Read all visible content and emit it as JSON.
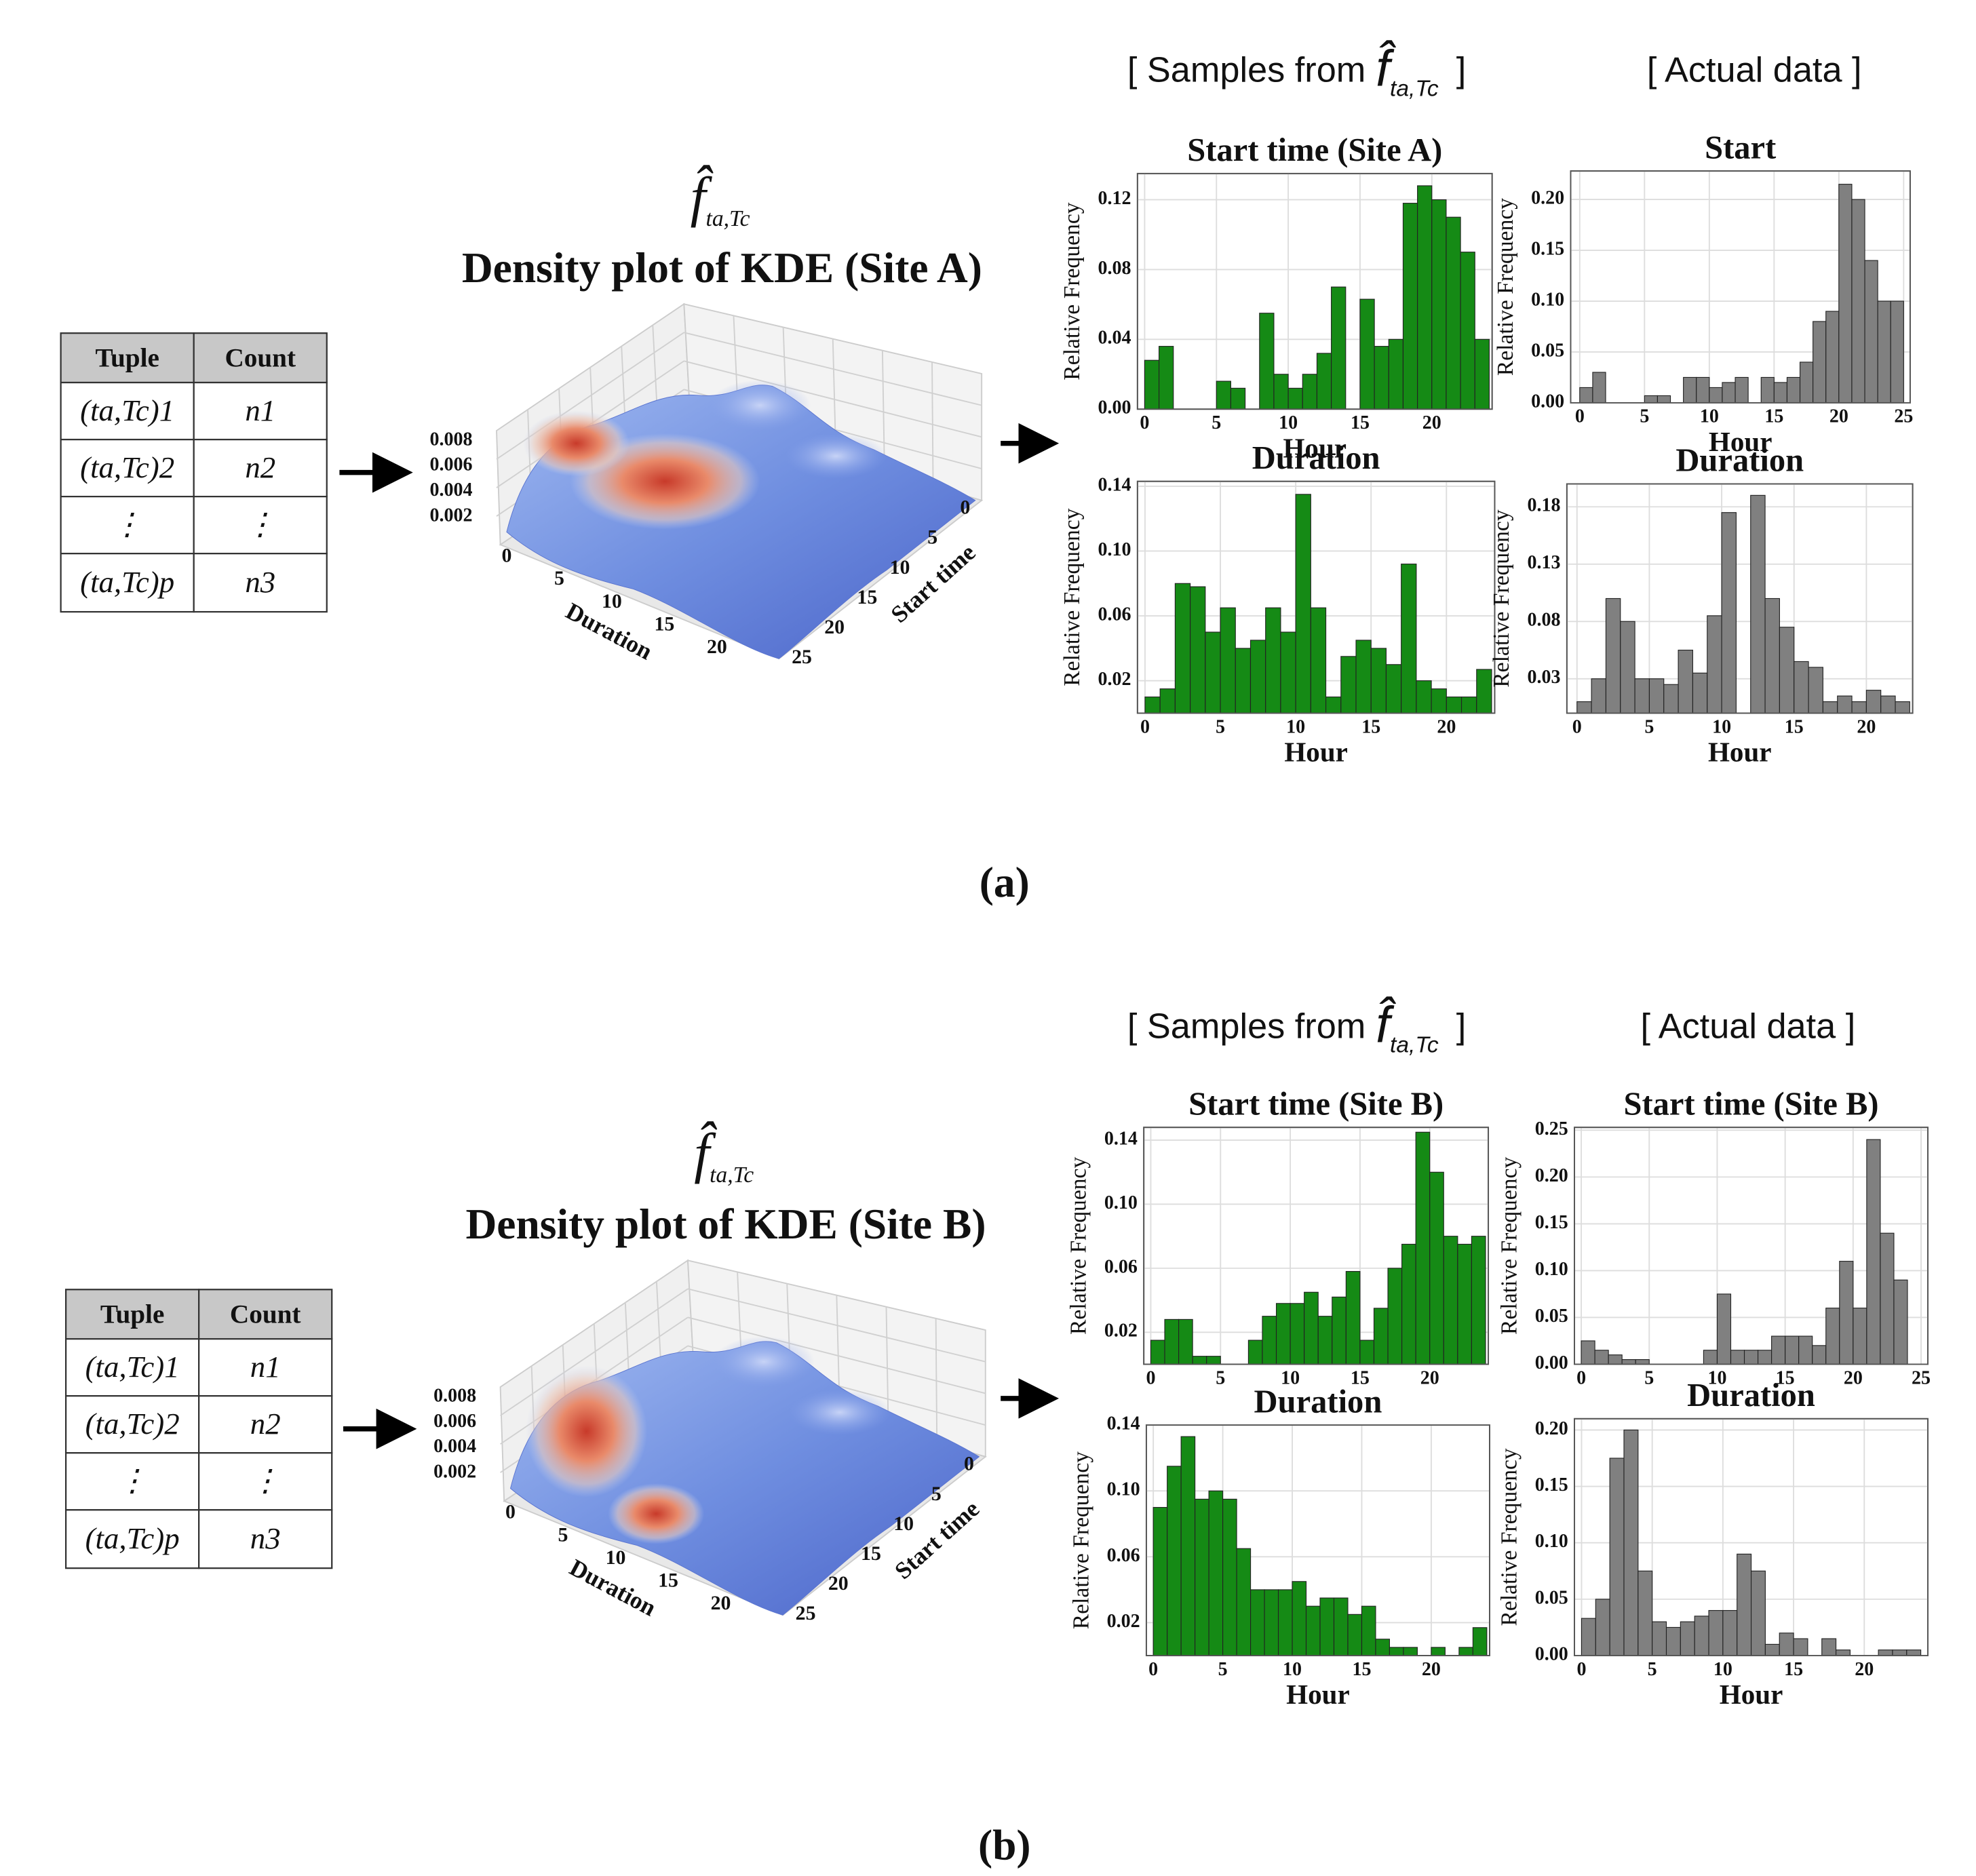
{
  "panels": [
    {
      "label": "(a)",
      "samples": {
        "text": "[ Samples from",
        "symbol": "f̂",
        "subscript": "ta,Tc",
        "close": "]"
      },
      "actual": "[ Actual data ]",
      "table": {
        "header": [
          "Tuple",
          "Count"
        ],
        "rows": [
          [
            "(ta,Tc)1",
            "n1"
          ],
          [
            "(ta,Tc)2",
            "n2"
          ],
          [
            "⋮",
            "⋮"
          ],
          [
            "(ta,Tc)p",
            "n3"
          ]
        ]
      },
      "kde": {
        "symbol": "f̂",
        "subscript": "ta,Tc",
        "title": "Density plot of KDE (Site A)",
        "zticks": [
          0.008,
          0.006,
          0.004,
          0.002
        ],
        "xticks": [
          0,
          5,
          10,
          15,
          20
        ],
        "yticks": [
          0,
          5,
          10,
          15,
          20,
          25
        ],
        "xlabel": "Duration",
        "ylabel": "Start time"
      }
    },
    {
      "label": "(b)",
      "samples": {
        "text": "[ Samples from",
        "symbol": "f̂",
        "subscript": "ta,Tc",
        "close": "]"
      },
      "actual": "[ Actual data ]",
      "table": {
        "header": [
          "Tuple",
          "Count"
        ],
        "rows": [
          [
            "(ta,Tc)1",
            "n1"
          ],
          [
            "(ta,Tc)2",
            "n2"
          ],
          [
            "⋮",
            "⋮"
          ],
          [
            "(ta,Tc)p",
            "n3"
          ]
        ]
      },
      "kde": {
        "symbol": "f̂",
        "subscript": "ta,Tc",
        "title": "Density plot of KDE (Site B)",
        "zticks": [
          0.008,
          0.006,
          0.004,
          0.002
        ],
        "xticks": [
          0,
          5,
          10,
          15,
          20
        ],
        "yticks": [
          0,
          5,
          10,
          15,
          20,
          25
        ],
        "xlabel": "Duration",
        "ylabel": "Start time"
      }
    }
  ],
  "chart_data": [
    {
      "type": "histogram",
      "title": "Start time (Site A)",
      "xlabel": "Hour",
      "ylabel": "Relative Frequency",
      "color": "#158a15",
      "bins": [
        0,
        1,
        2,
        3,
        4,
        5,
        6,
        7,
        8,
        9,
        10,
        11,
        12,
        13,
        14,
        15,
        16,
        17,
        18,
        19,
        20,
        21,
        22,
        23,
        24
      ],
      "values": [
        0.028,
        0.036,
        0,
        0,
        0,
        0.016,
        0.012,
        0,
        0.055,
        0.02,
        0.012,
        0.02,
        0.032,
        0.07,
        0,
        0.063,
        0.036,
        0.04,
        0.118,
        0.128,
        0.12,
        0.11,
        0.09,
        0.04
      ],
      "xlim": [
        -0.5,
        24.2
      ],
      "ylim": [
        0,
        0.135
      ],
      "xticks": [
        0,
        5,
        10,
        15,
        20
      ],
      "yticks": [
        {
          "value": 0,
          "label": "0.00"
        },
        0.04,
        0.08,
        0.12
      ],
      "grid": true
    },
    {
      "type": "histogram",
      "title": "Start",
      "xlabel": "Hour",
      "ylabel": "Relative Frequency",
      "color": "#808080",
      "bins": [
        0,
        1,
        2,
        3,
        4,
        5,
        6,
        7,
        8,
        9,
        10,
        11,
        12,
        13,
        14,
        15,
        16,
        17,
        18,
        19,
        20,
        21,
        22,
        23,
        24,
        25
      ],
      "values": [
        0.015,
        0.03,
        0,
        0,
        0,
        0.007,
        0.007,
        0,
        0.025,
        0.025,
        0.015,
        0.02,
        0.025,
        0,
        0.025,
        0.02,
        0.025,
        0.04,
        0.08,
        0.09,
        0.215,
        0.2,
        0.14,
        0.1,
        0.1
      ],
      "xlim": [
        -0.7,
        25.5
      ],
      "ylim": [
        0,
        0.228
      ],
      "xticks": [
        0,
        5,
        10,
        15,
        20,
        25
      ],
      "yticks": [
        {
          "value": 0,
          "label": "0.00"
        },
        0.05,
        {
          "value": 0.1,
          "label": "0.10"
        },
        0.15,
        {
          "value": 0.2,
          "label": "0.20"
        }
      ],
      "grid": true
    },
    {
      "type": "histogram",
      "title": "Duration",
      "xlabel": "Hour",
      "ylabel": "Relative Frequency",
      "color": "#158a15",
      "bins": [
        0,
        1,
        2,
        3,
        4,
        5,
        6,
        7,
        8,
        9,
        10,
        11,
        12,
        13,
        14,
        15,
        16,
        17,
        18,
        19,
        20,
        21,
        22,
        23
      ],
      "values": [
        0.01,
        0.015,
        0.08,
        0.078,
        0.05,
        0.065,
        0.04,
        0.045,
        0.065,
        0.05,
        0.135,
        0.065,
        0.01,
        0.035,
        0.045,
        0.04,
        0.03,
        0.092,
        0.02,
        0.015,
        0.01,
        0.01,
        0.027
      ],
      "xlim": [
        -0.5,
        23.2
      ],
      "ylim": [
        0,
        0.143
      ],
      "xticks": [
        0,
        5,
        10,
        15,
        20
      ],
      "yticks": [
        0.02,
        0.06,
        {
          "value": 0.1,
          "label": "0.10"
        },
        0.14
      ],
      "grid": true
    },
    {
      "type": "histogram",
      "title": "Duration",
      "xlabel": "Hour",
      "ylabel": "Relative Frequency",
      "color": "#808080",
      "bins": [
        0,
        1,
        2,
        3,
        4,
        5,
        6,
        7,
        8,
        9,
        10,
        11,
        12,
        13,
        14,
        15,
        16,
        17,
        18,
        19,
        20,
        21,
        22,
        23
      ],
      "values": [
        0.01,
        0.03,
        0.1,
        0.08,
        0.03,
        0.03,
        0.025,
        0.055,
        0.035,
        0.085,
        0.175,
        0,
        0.19,
        0.1,
        0.075,
        0.045,
        0.04,
        0.01,
        0.015,
        0.01,
        0.02,
        0.015,
        0.01
      ],
      "xlim": [
        -0.7,
        23.2
      ],
      "ylim": [
        0,
        0.2
      ],
      "xticks": [
        0,
        5,
        10,
        15,
        20
      ],
      "yticks": [
        0.03,
        0.08,
        0.13,
        0.18
      ],
      "grid": true
    },
    {
      "type": "histogram",
      "title": "Start time (Site B)",
      "xlabel": "",
      "ylabel": "Relative Frequency",
      "color": "#158a15",
      "bins": [
        0,
        1,
        2,
        3,
        4,
        5,
        6,
        7,
        8,
        9,
        10,
        11,
        12,
        13,
        14,
        15,
        16,
        17,
        18,
        19,
        20,
        21,
        22,
        23,
        24
      ],
      "values": [
        0.015,
        0.028,
        0.028,
        0.005,
        0.005,
        0,
        0,
        0.015,
        0.03,
        0.038,
        0.038,
        0.045,
        0.03,
        0.042,
        0.058,
        0.015,
        0.035,
        0.06,
        0.075,
        0.145,
        0.12,
        0.08,
        0.075,
        0.08
      ],
      "xlim": [
        -0.5,
        24.2
      ],
      "ylim": [
        0,
        0.148
      ],
      "xticks": [
        0,
        5,
        10,
        15,
        20
      ],
      "yticks": [
        0.02,
        0.06,
        {
          "value": 0.1,
          "label": "0.10"
        },
        0.14
      ],
      "grid": true
    },
    {
      "type": "histogram",
      "title": "Start time (Site B)",
      "xlabel": "",
      "ylabel": "Relative Frequency",
      "color": "#808080",
      "bins": [
        0,
        1,
        2,
        3,
        4,
        5,
        6,
        7,
        8,
        9,
        10,
        11,
        12,
        13,
        14,
        15,
        16,
        17,
        18,
        19,
        20,
        21,
        22,
        23,
        24
      ],
      "values": [
        0.025,
        0.015,
        0.01,
        0.005,
        0.005,
        0,
        0,
        0,
        0,
        0.015,
        0.075,
        0.015,
        0.015,
        0.015,
        0.03,
        0.03,
        0.03,
        0.02,
        0.06,
        0.11,
        0.06,
        0.24,
        0.14,
        0.09
      ],
      "xlim": [
        -0.5,
        25.5
      ],
      "ylim": [
        0,
        0.253
      ],
      "xticks": [
        0,
        5,
        10,
        15,
        20,
        25
      ],
      "yticks": [
        {
          "value": 0,
          "label": "0.00"
        },
        0.05,
        {
          "value": 0.1,
          "label": "0.10"
        },
        0.15,
        {
          "value": 0.2,
          "label": "0.20"
        },
        0.25
      ],
      "grid": true
    },
    {
      "type": "histogram",
      "title": "Duration",
      "xlabel": "Hour",
      "ylabel": "Relative Frequency",
      "color": "#158a15",
      "bins": [
        0,
        1,
        2,
        3,
        4,
        5,
        6,
        7,
        8,
        9,
        10,
        11,
        12,
        13,
        14,
        15,
        16,
        17,
        18,
        19,
        20,
        21,
        22,
        23,
        24
      ],
      "values": [
        0.09,
        0.115,
        0.133,
        0.095,
        0.1,
        0.095,
        0.065,
        0.04,
        0.04,
        0.04,
        0.045,
        0.03,
        0.035,
        0.035,
        0.025,
        0.03,
        0.01,
        0.005,
        0.005,
        0,
        0.005,
        0,
        0.005,
        0.017
      ],
      "xlim": [
        -0.5,
        24.2
      ],
      "ylim": [
        0,
        0.14
      ],
      "xticks": [
        0,
        5,
        10,
        15,
        20
      ],
      "yticks": [
        0.02,
        0.06,
        {
          "value": 0.1,
          "label": "0.10"
        },
        0.14
      ],
      "grid": true
    },
    {
      "type": "histogram",
      "title": "Duration",
      "xlabel": "Hour",
      "ylabel": "Relative Frequency",
      "color": "#808080",
      "bins": [
        0,
        1,
        2,
        3,
        4,
        5,
        6,
        7,
        8,
        9,
        10,
        11,
        12,
        13,
        14,
        15,
        16,
        17,
        18,
        19,
        20,
        21,
        22,
        23,
        24
      ],
      "values": [
        0.033,
        0.05,
        0.175,
        0.2,
        0.075,
        0.03,
        0.025,
        0.03,
        0.035,
        0.04,
        0.04,
        0.09,
        0.075,
        0.01,
        0.02,
        0.015,
        0,
        0.015,
        0.005,
        0,
        0,
        0.005,
        0.005,
        0.005
      ],
      "xlim": [
        -0.5,
        24.5
      ],
      "ylim": [
        0,
        0.21
      ],
      "xticks": [
        0,
        5,
        10,
        15,
        20
      ],
      "yticks": [
        {
          "value": 0,
          "label": "0.00"
        },
        0.05,
        {
          "value": 0.1,
          "label": "0.10"
        },
        0.15,
        {
          "value": 0.2,
          "label": "0.20"
        }
      ],
      "grid": true
    }
  ]
}
